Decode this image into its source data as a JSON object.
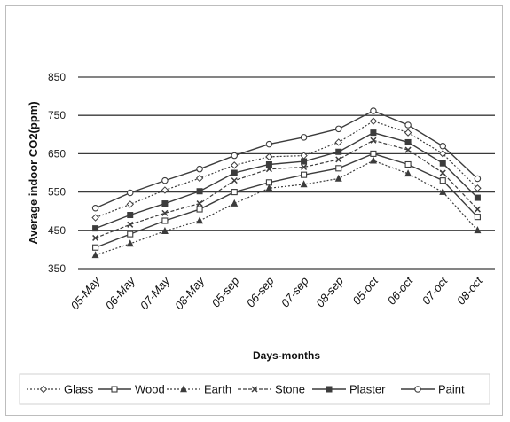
{
  "chart_data": {
    "type": "line",
    "title": "",
    "xlabel": "Days-months",
    "ylabel": "Average indoor CO2(ppm)",
    "categories": [
      "05-May",
      "06-May",
      "07-May",
      "08-May",
      "05-sep",
      "06-sep",
      "07-sep",
      "08-sep",
      "05-oct",
      "06-oct",
      "07-oct",
      "08-oct"
    ],
    "y_ticks": [
      350,
      450,
      550,
      650,
      750,
      850
    ],
    "ylim": [
      350,
      850
    ],
    "grid": true,
    "legend_position": "bottom",
    "series": [
      {
        "name": "Glass",
        "style": "dotted",
        "marker": "diamond",
        "values": [
          483,
          518,
          555,
          586,
          620,
          642,
          645,
          680,
          735,
          705,
          650,
          560
        ]
      },
      {
        "name": "Wood",
        "style": "solid",
        "marker": "square",
        "values": [
          405,
          440,
          475,
          505,
          550,
          575,
          595,
          612,
          650,
          622,
          580,
          485
        ]
      },
      {
        "name": "Earth",
        "style": "dotted",
        "marker": "triangle",
        "values": [
          385,
          415,
          448,
          475,
          520,
          560,
          570,
          585,
          632,
          598,
          550,
          450
        ]
      },
      {
        "name": "Stone",
        "style": "dashed",
        "marker": "x",
        "values": [
          430,
          465,
          495,
          520,
          580,
          610,
          615,
          635,
          685,
          660,
          600,
          505
        ]
      },
      {
        "name": "Plaster",
        "style": "solid",
        "marker": "star",
        "values": [
          455,
          490,
          520,
          552,
          600,
          622,
          630,
          655,
          705,
          680,
          625,
          535
        ]
      },
      {
        "name": "Paint",
        "style": "solid",
        "marker": "circle",
        "values": [
          508,
          548,
          580,
          610,
          645,
          675,
          693,
          715,
          762,
          725,
          670,
          585
        ]
      }
    ],
    "colors": {
      "line": "#3c3c3c",
      "grid": "#3a3a3a",
      "frame": "#bdbdbd",
      "legend_border": "#d0d0d0"
    }
  }
}
